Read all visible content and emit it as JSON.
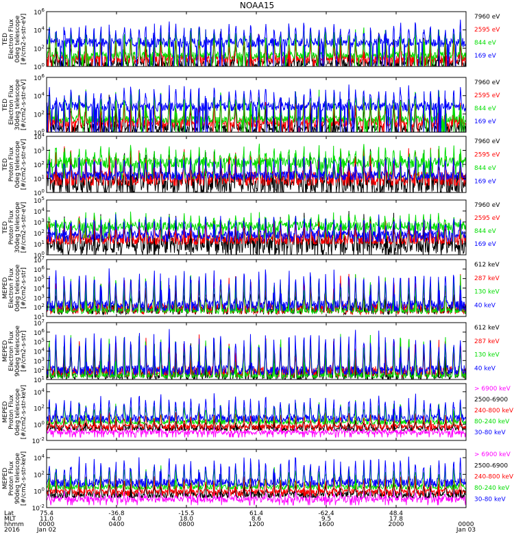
{
  "chart_data": {
    "type": "line",
    "title": "NOAA15",
    "panels": [
      {
        "ylabel": [
          "TED",
          "Electron Flux",
          "0deg telescope",
          "[#/cm2-s-str-eV]"
        ],
        "ylim": [
          1,
          1000000
        ],
        "ymin_exp": 0,
        "ymax_exp": 6,
        "tick_exps": [
          0,
          2,
          4,
          6
        ],
        "series": [
          {
            "name": "7960 eV",
            "color": "#000000",
            "base": 0.3,
            "spread": 0.5,
            "peak": 3.6,
            "floor": 0.0
          },
          {
            "name": "2595 eV",
            "color": "#ff0000",
            "base": 0.8,
            "spread": 0.5,
            "peak": 3.3,
            "floor": 0.0
          },
          {
            "name": "844 eV",
            "color": "#00dd00",
            "base": 1.2,
            "spread": 0.4,
            "peak": 4.4,
            "floor": 0.0
          },
          {
            "name": "169 eV",
            "color": "#0000ff",
            "base": 2.6,
            "spread": 0.5,
            "peak": 4.8,
            "floor": 0.0
          }
        ]
      },
      {
        "ylabel": [
          "TED",
          "Electron Flux",
          "30deg telescope",
          "[#/cm2-s-str-eV]"
        ],
        "ylim": [
          1,
          1000000
        ],
        "ymin_exp": 0,
        "ymax_exp": 6,
        "tick_exps": [
          0,
          2,
          4,
          6
        ],
        "series": [
          {
            "name": "7960 eV",
            "color": "#000000",
            "base": 0.4,
            "spread": 0.5,
            "peak": 3.8,
            "floor": 0.0
          },
          {
            "name": "2595 eV",
            "color": "#ff0000",
            "base": 1.0,
            "spread": 0.5,
            "peak": 3.6,
            "floor": 0.0
          },
          {
            "name": "844 eV",
            "color": "#00dd00",
            "base": 1.4,
            "spread": 0.4,
            "peak": 4.6,
            "floor": 0.0
          },
          {
            "name": "169 eV",
            "color": "#0000ff",
            "base": 2.8,
            "spread": 0.5,
            "peak": 4.9,
            "floor": 0.0
          }
        ]
      },
      {
        "ylabel": [
          "TED",
          "Proton Flux",
          "0deg telescope",
          "[#/cm2-s-str-eV]"
        ],
        "ylim": [
          1,
          10000
        ],
        "ymin_exp": 0,
        "ymax_exp": 4,
        "tick_exps": [
          0,
          1,
          2,
          3,
          4
        ],
        "series": [
          {
            "name": "7960 eV",
            "color": "#000000",
            "base": 0.6,
            "spread": 0.7,
            "peak": 2.8,
            "floor": 0.0
          },
          {
            "name": "2595 eV",
            "color": "#ff0000",
            "base": 1.0,
            "spread": 0.5,
            "peak": 2.9,
            "floor": 0.5
          },
          {
            "name": "844 eV",
            "color": "#00dd00",
            "base": 2.1,
            "spread": 0.4,
            "peak": 3.3,
            "floor": 1.0
          },
          {
            "name": "169 eV",
            "color": "#0000ff",
            "base": 1.2,
            "spread": 0.3,
            "peak": 2.6,
            "floor": 0.9
          }
        ]
      },
      {
        "ylabel": [
          "TED",
          "Proton Flux",
          "30deg telescope",
          "[#/cm2-s-str-eV]"
        ],
        "ylim": [
          1,
          100000
        ],
        "ymin_exp": 0,
        "ymax_exp": 5,
        "tick_exps": [
          0,
          1,
          2,
          3,
          4,
          5
        ],
        "series": [
          {
            "name": "7960 eV",
            "color": "#000000",
            "base": 0.9,
            "spread": 0.8,
            "peak": 3.4,
            "floor": 0.0
          },
          {
            "name": "2595 eV",
            "color": "#ff0000",
            "base": 1.4,
            "spread": 0.5,
            "peak": 3.3,
            "floor": 1.0
          },
          {
            "name": "844 eV",
            "color": "#00dd00",
            "base": 2.6,
            "spread": 0.4,
            "peak": 3.8,
            "floor": 1.5
          },
          {
            "name": "169 eV",
            "color": "#0000ff",
            "base": 1.8,
            "spread": 0.4,
            "peak": 3.5,
            "floor": 1.2
          }
        ]
      },
      {
        "ylabel": [
          "MEPED",
          "Electron Flux",
          "0deg telescope",
          "[#/cm2-s-str]"
        ],
        "ylim": [
          10,
          10000000
        ],
        "ymin_exp": 1,
        "ymax_exp": 7,
        "tick_exps": [
          1,
          2,
          3,
          4,
          5,
          6,
          7
        ],
        "series": [
          {
            "name": "612 keV",
            "color": "#000000",
            "base": 1.7,
            "spread": 0.5,
            "peak": 4.0,
            "floor": 1.5
          },
          {
            "name": "287 keV",
            "color": "#ff0000",
            "base": 1.8,
            "spread": 0.6,
            "peak": 5.2,
            "floor": 1.5
          },
          {
            "name": "130 keV",
            "color": "#00dd00",
            "base": 1.6,
            "spread": 0.3,
            "peak": 5.5,
            "floor": 1.5
          },
          {
            "name": "40 keV",
            "color": "#0000ff",
            "base": 2.2,
            "spread": 0.5,
            "peak": 6.2,
            "floor": 1.6
          }
        ]
      },
      {
        "ylabel": [
          "MEPED",
          "Electron Flux",
          "90deg telescope",
          "[#/cm2-s-str]"
        ],
        "ylim": [
          10,
          10000000
        ],
        "ymin_exp": 1,
        "ymax_exp": 7,
        "tick_exps": [
          1,
          2,
          3,
          4,
          5,
          6,
          7
        ],
        "series": [
          {
            "name": "612 keV",
            "color": "#000000",
            "base": 1.5,
            "spread": 0.6,
            "peak": 5.0,
            "floor": 1.2
          },
          {
            "name": "287 keV",
            "color": "#ff0000",
            "base": 1.8,
            "spread": 0.6,
            "peak": 5.6,
            "floor": 1.5
          },
          {
            "name": "130 keV",
            "color": "#00dd00",
            "base": 1.4,
            "spread": 0.3,
            "peak": 5.8,
            "floor": 1.3
          },
          {
            "name": "40 keV",
            "color": "#0000ff",
            "base": 2.0,
            "spread": 0.5,
            "peak": 6.3,
            "floor": 1.5
          }
        ]
      },
      {
        "ylabel": [
          "MEPED",
          "Proton Flux",
          "0deg telescope",
          "[#/cm2-s-str-keV]"
        ],
        "ylim": [
          0.01,
          100000
        ],
        "ymin_exp": -2,
        "ymax_exp": 5,
        "tick_exps": [
          -2,
          0,
          2,
          4
        ],
        "series": [
          {
            "name": "> 6900 keV",
            "color": "#ff00ff",
            "base": -1.0,
            "spread": 0.3,
            "peak": -0.6,
            "floor": -1.6
          },
          {
            "name": "2500-6900",
            "color": "#000000",
            "base": -0.5,
            "spread": 0.3,
            "peak": 0.6,
            "floor": -0.8
          },
          {
            "name": "240-800 keV",
            "color": "#ff0000",
            "base": -0.3,
            "spread": 0.3,
            "peak": 1.4,
            "floor": -0.8
          },
          {
            "name": "80-240 keV",
            "color": "#00dd00",
            "base": 0.3,
            "spread": 0.3,
            "peak": 2.8,
            "floor": 0.0
          },
          {
            "name": "30-80 keV",
            "color": "#0000ff",
            "base": 0.7,
            "spread": 0.5,
            "peak": 3.6,
            "floor": 0.4
          }
        ]
      },
      {
        "ylabel": [
          "MEPED",
          "Proton Flux",
          "90deg telescope",
          "[#/cm2-s-str-keV]"
        ],
        "ylim": [
          0.01,
          100000
        ],
        "ymin_exp": -2,
        "ymax_exp": 5,
        "tick_exps": [
          -2,
          0,
          2,
          4
        ],
        "series": [
          {
            "name": "> 6900 keV",
            "color": "#ff00ff",
            "base": -1.0,
            "spread": 0.4,
            "peak": -0.2,
            "floor": -1.7
          },
          {
            "name": "2500-6900",
            "color": "#000000",
            "base": -0.4,
            "spread": 0.4,
            "peak": 1.0,
            "floor": -0.8
          },
          {
            "name": "240-800 keV",
            "color": "#ff0000",
            "base": -0.1,
            "spread": 0.3,
            "peak": 1.8,
            "floor": -0.6
          },
          {
            "name": "80-240 keV",
            "color": "#00dd00",
            "base": 0.5,
            "spread": 0.3,
            "peak": 3.2,
            "floor": 0.2
          },
          {
            "name": "30-80 keV",
            "color": "#0000ff",
            "base": 1.0,
            "spread": 0.5,
            "peak": 4.0,
            "floor": 0.5
          }
        ]
      }
    ],
    "pass_count": 28,
    "x_axis": {
      "row_labels": [
        "Lat",
        "MLT",
        "hhmm",
        "2016"
      ],
      "ticks": [
        {
          "lat": "75.4",
          "mlt": "11.0",
          "hhmm": "0000",
          "date": "Jan 02"
        },
        {
          "lat": "-36.8",
          "mlt": "4.0",
          "hhmm": "0400",
          "date": ""
        },
        {
          "lat": "-15.5",
          "mlt": "18.0",
          "hhmm": "0800",
          "date": ""
        },
        {
          "lat": "61.4",
          "mlt": "8.6",
          "hhmm": "1200",
          "date": ""
        },
        {
          "lat": "-62.4",
          "mlt": "9.5",
          "hhmm": "1600",
          "date": ""
        },
        {
          "lat": "48.4",
          "mlt": "17.8",
          "hhmm": "2000",
          "date": ""
        },
        {
          "lat": "",
          "mlt": "",
          "hhmm": "0000",
          "date": "Jan 03"
        }
      ]
    }
  }
}
